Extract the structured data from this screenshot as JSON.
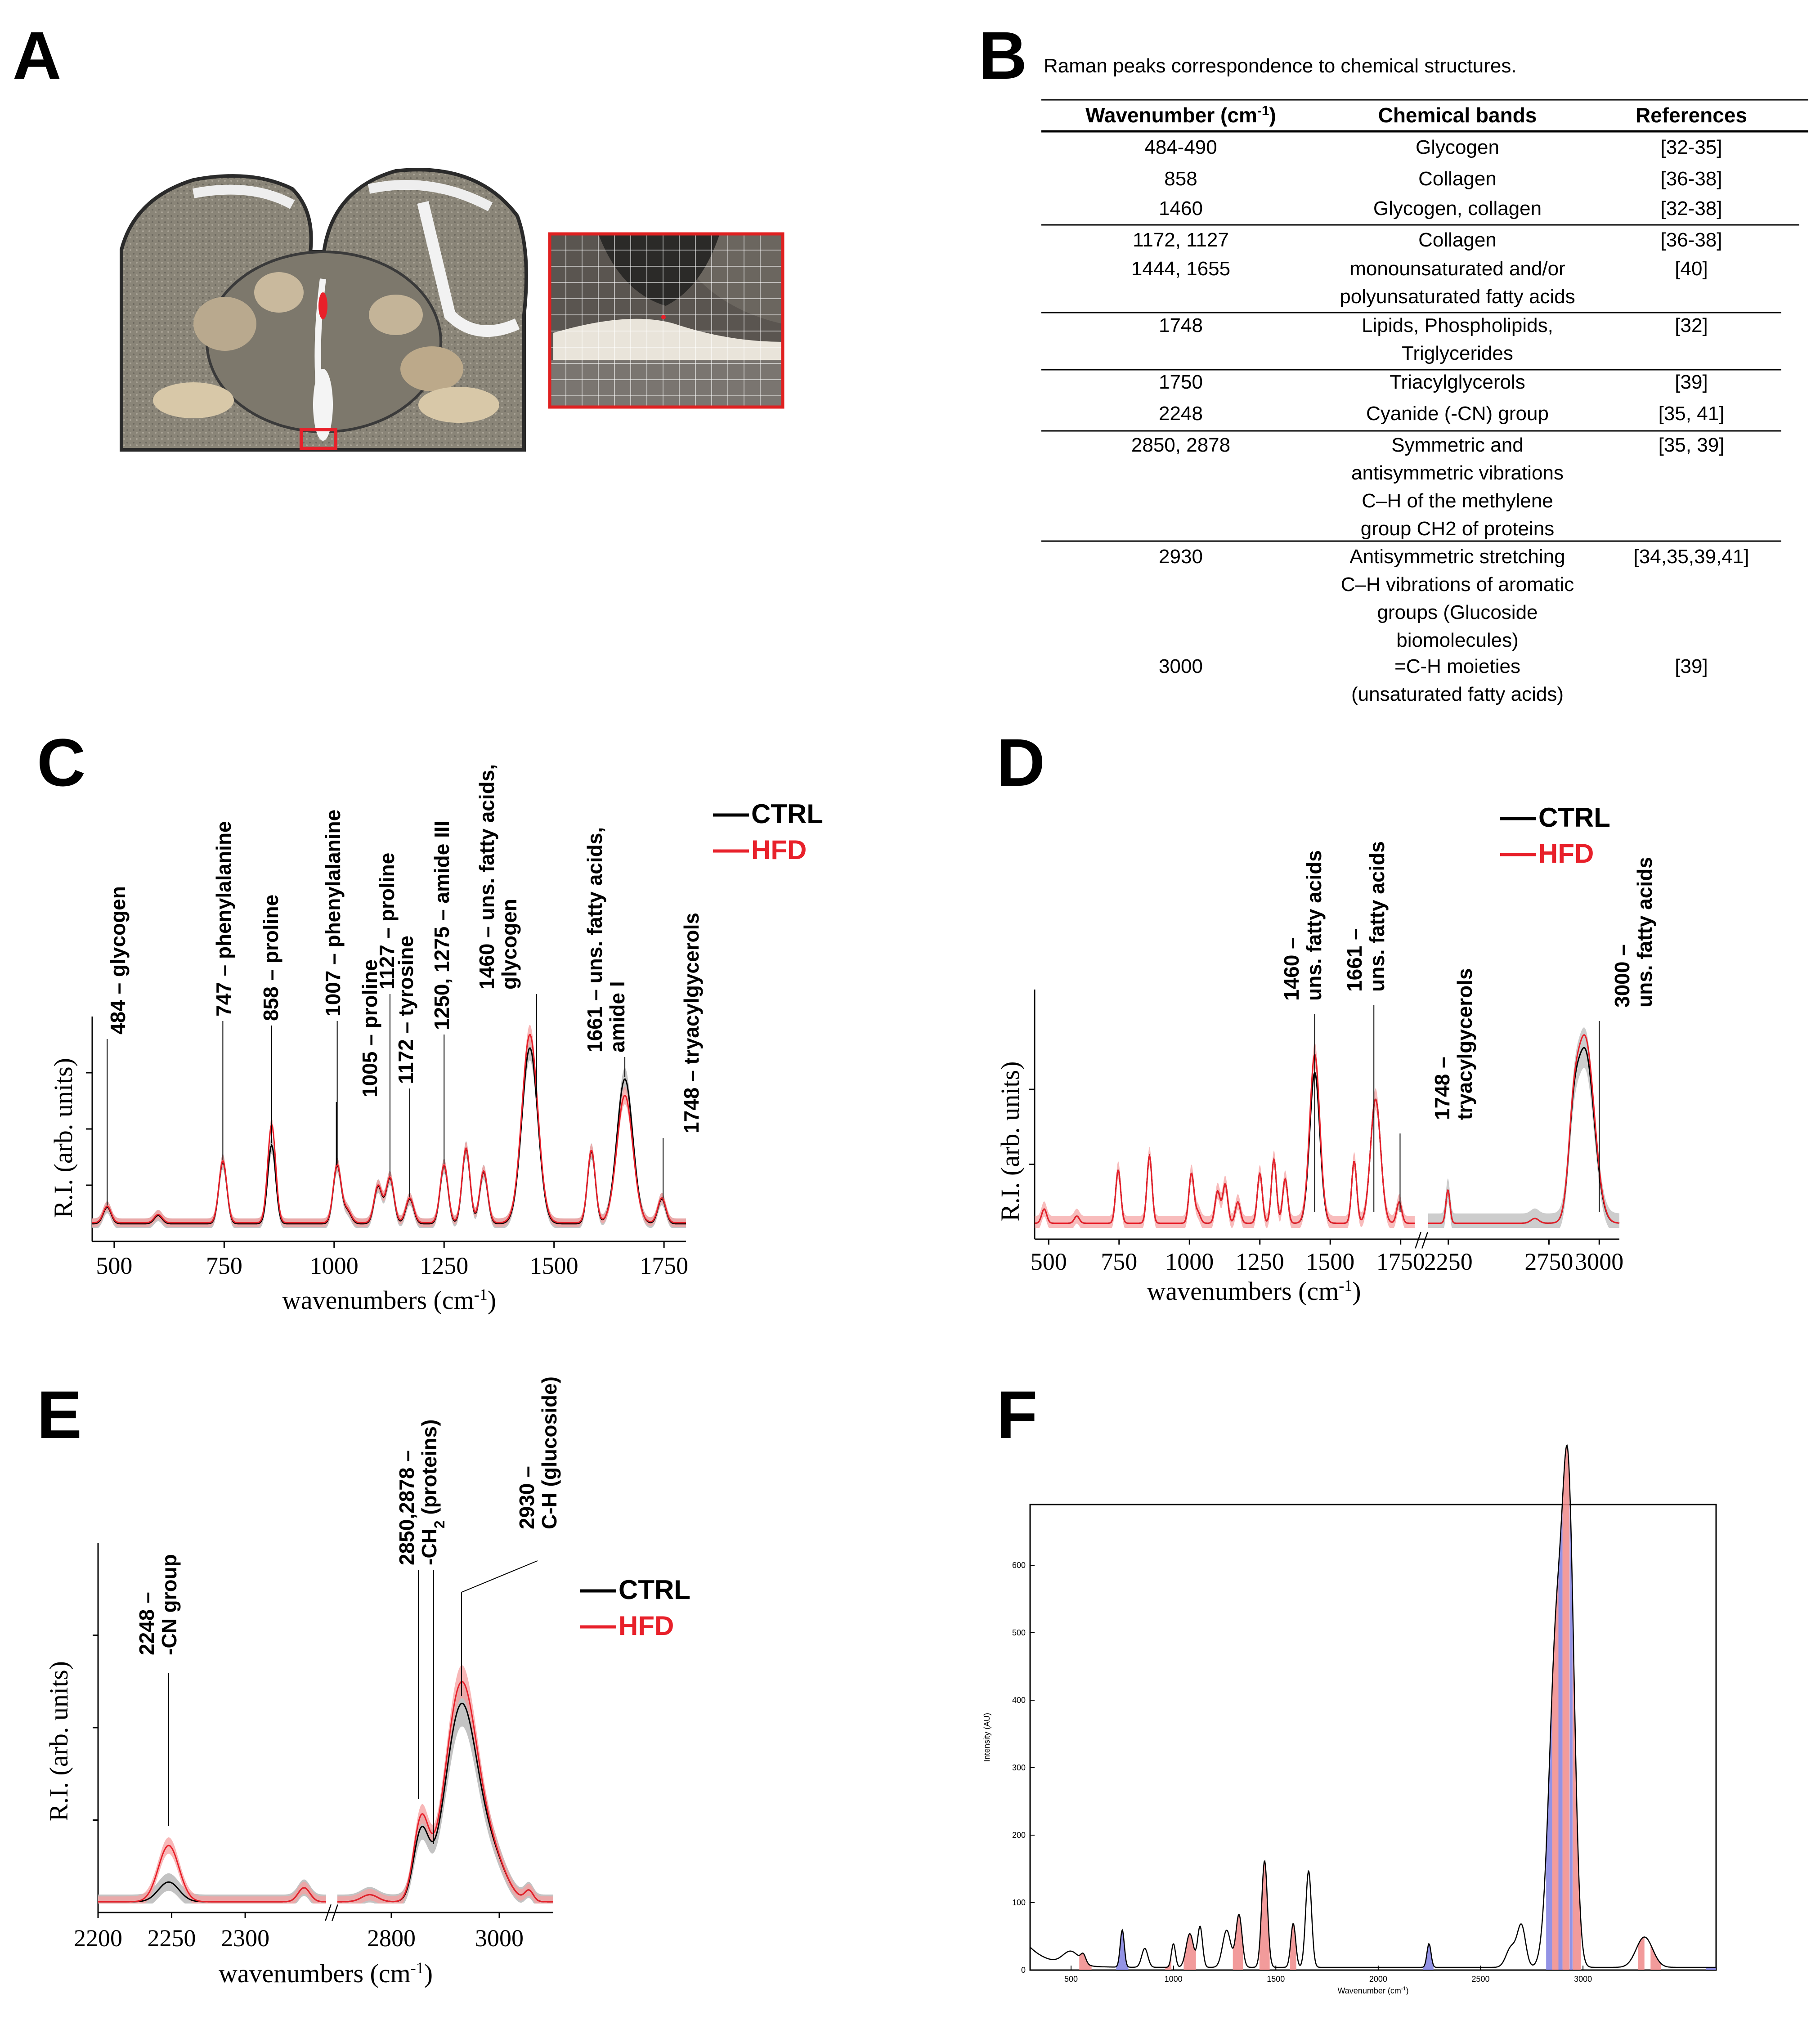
{
  "panels": {
    "A": "A",
    "B": "B",
    "C": "C",
    "D": "D",
    "E": "E",
    "F": "F"
  },
  "colors": {
    "ctrl": "#000000",
    "hfd": "#e8202a",
    "ctrl_band": "#b8b8b8",
    "hfd_band": "#f5a0a0",
    "f_red": "#f08a8a",
    "f_blue": "#8080e0",
    "grid_red": "#e02020"
  },
  "table": {
    "title": "Raman peaks correspondence to chemical structures.",
    "headers": {
      "wavenumber": "Wavenumber (cm",
      "sup": "-1",
      "close": ")",
      "bands": "Chemical bands",
      "refs": "References"
    },
    "rows": [
      {
        "w": [
          "484-490"
        ],
        "b": [
          "Glycogen"
        ],
        "r": [
          "[32-35]"
        ]
      },
      {
        "w": [
          "858"
        ],
        "b": [
          "Collagen"
        ],
        "r": [
          "[36-38]"
        ]
      },
      {
        "w": [
          "1460"
        ],
        "b": [
          "Glycogen, collagen"
        ],
        "r": [
          "[32-38]"
        ]
      },
      {
        "w": [
          "1172, 1127"
        ],
        "b": [
          "Collagen"
        ],
        "r": [
          "[36-38]"
        ]
      },
      {
        "w": [
          "1444, 1655"
        ],
        "b": [
          "monounsaturated and/or",
          "polyunsaturated fatty acids"
        ],
        "r": [
          "[40]"
        ]
      },
      {
        "w": [
          "1748"
        ],
        "b": [
          "Lipids, Phospholipids,",
          "Triglycerides"
        ],
        "r": [
          "[32]"
        ]
      },
      {
        "w": [
          "1750"
        ],
        "b": [
          "Triacylglycerols"
        ],
        "r": [
          "[39]"
        ]
      },
      {
        "w": [
          "2248"
        ],
        "b": [
          "Cyanide (-CN) group"
        ],
        "r": [
          "[35, 41]"
        ]
      },
      {
        "w": [
          "2850, 2878"
        ],
        "b": [
          "Symmetric and",
          "antisymmetric vibrations",
          "C–H of the methylene",
          "group CH2 of proteins"
        ],
        "r": [
          "[35, 39]"
        ]
      },
      {
        "w": [
          "2930"
        ],
        "b": [
          "Antisymmetric stretching",
          "C–H vibrations of aromatic",
          "groups (Glucoside",
          "biomolecules)"
        ],
        "r": [
          "[34,35,39,41]"
        ]
      },
      {
        "w": [
          "3000"
        ],
        "b": [
          "=C-H moieties",
          "(unsaturated fatty acids)"
        ],
        "r": [
          "[39]"
        ]
      }
    ]
  },
  "legend": {
    "ctrl": "CTRL",
    "hfd": "HFD"
  },
  "chart_data": [
    {
      "panel": "C",
      "type": "line",
      "xlabel": "wavenumbers (cm",
      "xlabel_sup": "-1",
      "xlabel_close": ")",
      "ylabel": "R.I. (arb. units)",
      "xlim": [
        450,
        1800
      ],
      "ylim": [
        0,
        1
      ],
      "xticks": [
        500,
        750,
        1000,
        1250,
        1500,
        1750
      ],
      "peaks": [
        {
          "x": 484,
          "h": 0.08
        },
        {
          "x": 600,
          "h": 0.04
        },
        {
          "x": 747,
          "h": 0.3
        },
        {
          "x": 858,
          "h": 0.38
        },
        {
          "x": 1007,
          "h": 0.28
        },
        {
          "x": 1030,
          "h": 0.06
        },
        {
          "x": 1100,
          "h": 0.18
        },
        {
          "x": 1127,
          "h": 0.22
        },
        {
          "x": 1172,
          "h": 0.12
        },
        {
          "x": 1250,
          "h": 0.28
        },
        {
          "x": 1300,
          "h": 0.36
        },
        {
          "x": 1340,
          "h": 0.25
        },
        {
          "x": 1445,
          "h": 0.85
        },
        {
          "x": 1585,
          "h": 0.35
        },
        {
          "x": 1661,
          "h": 0.7
        },
        {
          "x": 1745,
          "h": 0.12
        }
      ],
      "hfd_scale": {
        "1445": 1.07,
        "1661": 0.88,
        "858": 1.25
      },
      "annotations": [
        {
          "x": 484,
          "text": "484 – glycogen"
        },
        {
          "x": 747,
          "text": "747 – phenylalanine"
        },
        {
          "x": 858,
          "text": "858 – proline"
        },
        {
          "x": 1007,
          "text": "1007 – phenylalanine"
        },
        {
          "x": 1005,
          "text": "1005 – proline"
        },
        {
          "x": 1127,
          "text": "1127 – proline"
        },
        {
          "x": 1172,
          "text": "1172 – tyrosine"
        },
        {
          "x": 1250,
          "text": "1250, 1275 – amide III"
        },
        {
          "x": 1460,
          "text": "1460 – uns. fatty acids,",
          "text2": "glycogen"
        },
        {
          "x": 1661,
          "text": "1661 – uns. fatty acids,",
          "text2": "amide I"
        },
        {
          "x": 1748,
          "text": "1748 – tryacylgycerols"
        }
      ]
    },
    {
      "panel": "D",
      "type": "line",
      "xlabel": "wavenumbers (cm",
      "xlabel_sup": "-1",
      "xlabel_close": ")",
      "ylabel": "R.I. (arb. units)",
      "xticks_left": [
        500,
        750,
        1000,
        1250,
        1500,
        1750
      ],
      "xticks_right": [
        2250,
        2750,
        3000
      ],
      "annotations": [
        {
          "x": 1460,
          "text": "1460 –",
          "text2": "uns. fatty acids"
        },
        {
          "x": 1661,
          "text": "1661 –",
          "text2": "uns. fatty acids"
        },
        {
          "x": 1748,
          "text": "1748 –",
          "text2": "tryacylgycerols"
        },
        {
          "x": 3000,
          "text": "3000 –",
          "text2": "uns. fatty acids"
        }
      ]
    },
    {
      "panel": "E",
      "type": "line",
      "xlabel": "wavenumbers (cm",
      "xlabel_sup": "-1",
      "xlabel_close": ")",
      "ylabel": "R.I. (arb. units)",
      "xticks_left": [
        2200,
        2250,
        2300
      ],
      "xticks_right": [
        2800,
        3000
      ],
      "annotations": [
        {
          "x": 2248,
          "text": "2248 –",
          "text2": "-CN group"
        },
        {
          "x": 2850,
          "text": "2850,2878 –",
          "text2": "-CH",
          "sub": "2",
          "text3": " (proteins)"
        },
        {
          "x": 2930,
          "text": "2930 –",
          "text2": "C-H (glucoside)"
        }
      ]
    },
    {
      "panel": "F",
      "type": "area",
      "xlabel": "Wavenumber (cm",
      "xlabel_sup": "-1",
      "xlabel_close": ")",
      "ylabel": "Intensity (AU)",
      "xlim": [
        300,
        3650
      ],
      "ylim": [
        0,
        690
      ],
      "xticks": [
        500,
        1000,
        1500,
        2000,
        2500,
        3000
      ],
      "yticks": [
        0,
        100,
        200,
        300,
        400,
        500,
        600
      ]
    }
  ]
}
